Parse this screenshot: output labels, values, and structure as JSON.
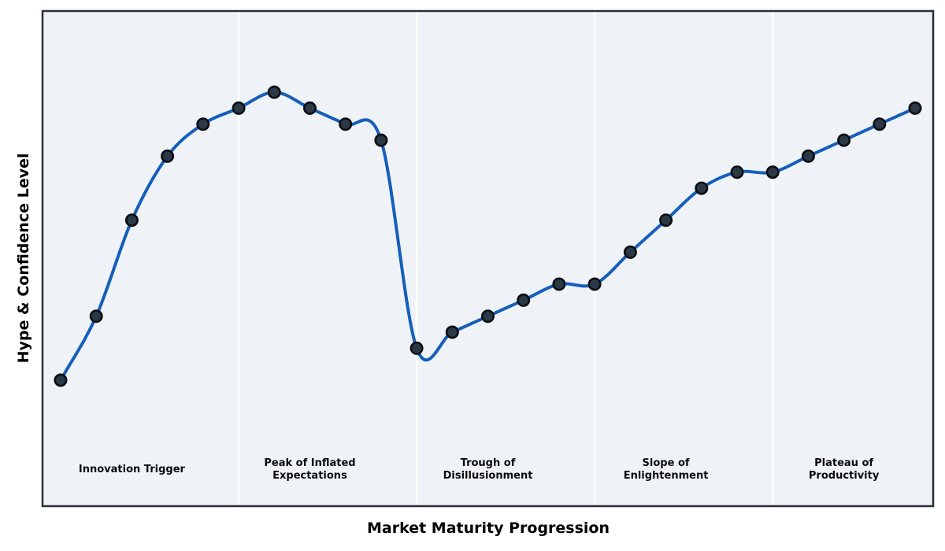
{
  "chart_data": {
    "type": "line",
    "title": "",
    "xlabel": "Market Maturity Progression",
    "ylabel": "Hype & Confidence Level",
    "x": [
      0,
      1,
      2,
      3,
      4,
      5,
      6,
      7,
      8,
      9,
      10,
      11,
      12,
      13,
      14,
      15,
      16,
      17,
      18,
      19,
      20,
      21,
      22,
      23,
      24
    ],
    "values": [
      20,
      30,
      45,
      55,
      60,
      62.5,
      65,
      62.5,
      60,
      57.5,
      25,
      27.5,
      30,
      32.5,
      35,
      35,
      40,
      45,
      50,
      52.5,
      52.5,
      55,
      57.5,
      60,
      62.5
    ],
    "xlim": [
      -0.5,
      24.5
    ],
    "ylim": [
      0,
      78
    ],
    "grid": "vertical white gridlines only",
    "gridline_x": [
      5,
      10,
      15,
      20
    ],
    "legend": "none",
    "axis_ticks": "none (no tick labels on either axis)",
    "curve_style": "smooth spline through points with round dark markers",
    "phases": [
      {
        "label": "Innovation Trigger",
        "center_x": 2
      },
      {
        "label": "Peak of Inflated\nExpectations",
        "center_x": 7
      },
      {
        "label": "Trough of\nDisillusionment",
        "center_x": 12
      },
      {
        "label": "Slope of\nEnlightenment",
        "center_x": 17
      },
      {
        "label": "Plateau of\nProductivity",
        "center_x": 22
      }
    ],
    "colors": {
      "line": "#155fba",
      "marker_fill": "#2b3947",
      "marker_edge": "#0b0e13",
      "plot_background": "#eff3f8",
      "figure_background": "#ffffff",
      "border": "#2b2f36",
      "gridline": "#ffffff",
      "text": "#000000"
    }
  }
}
